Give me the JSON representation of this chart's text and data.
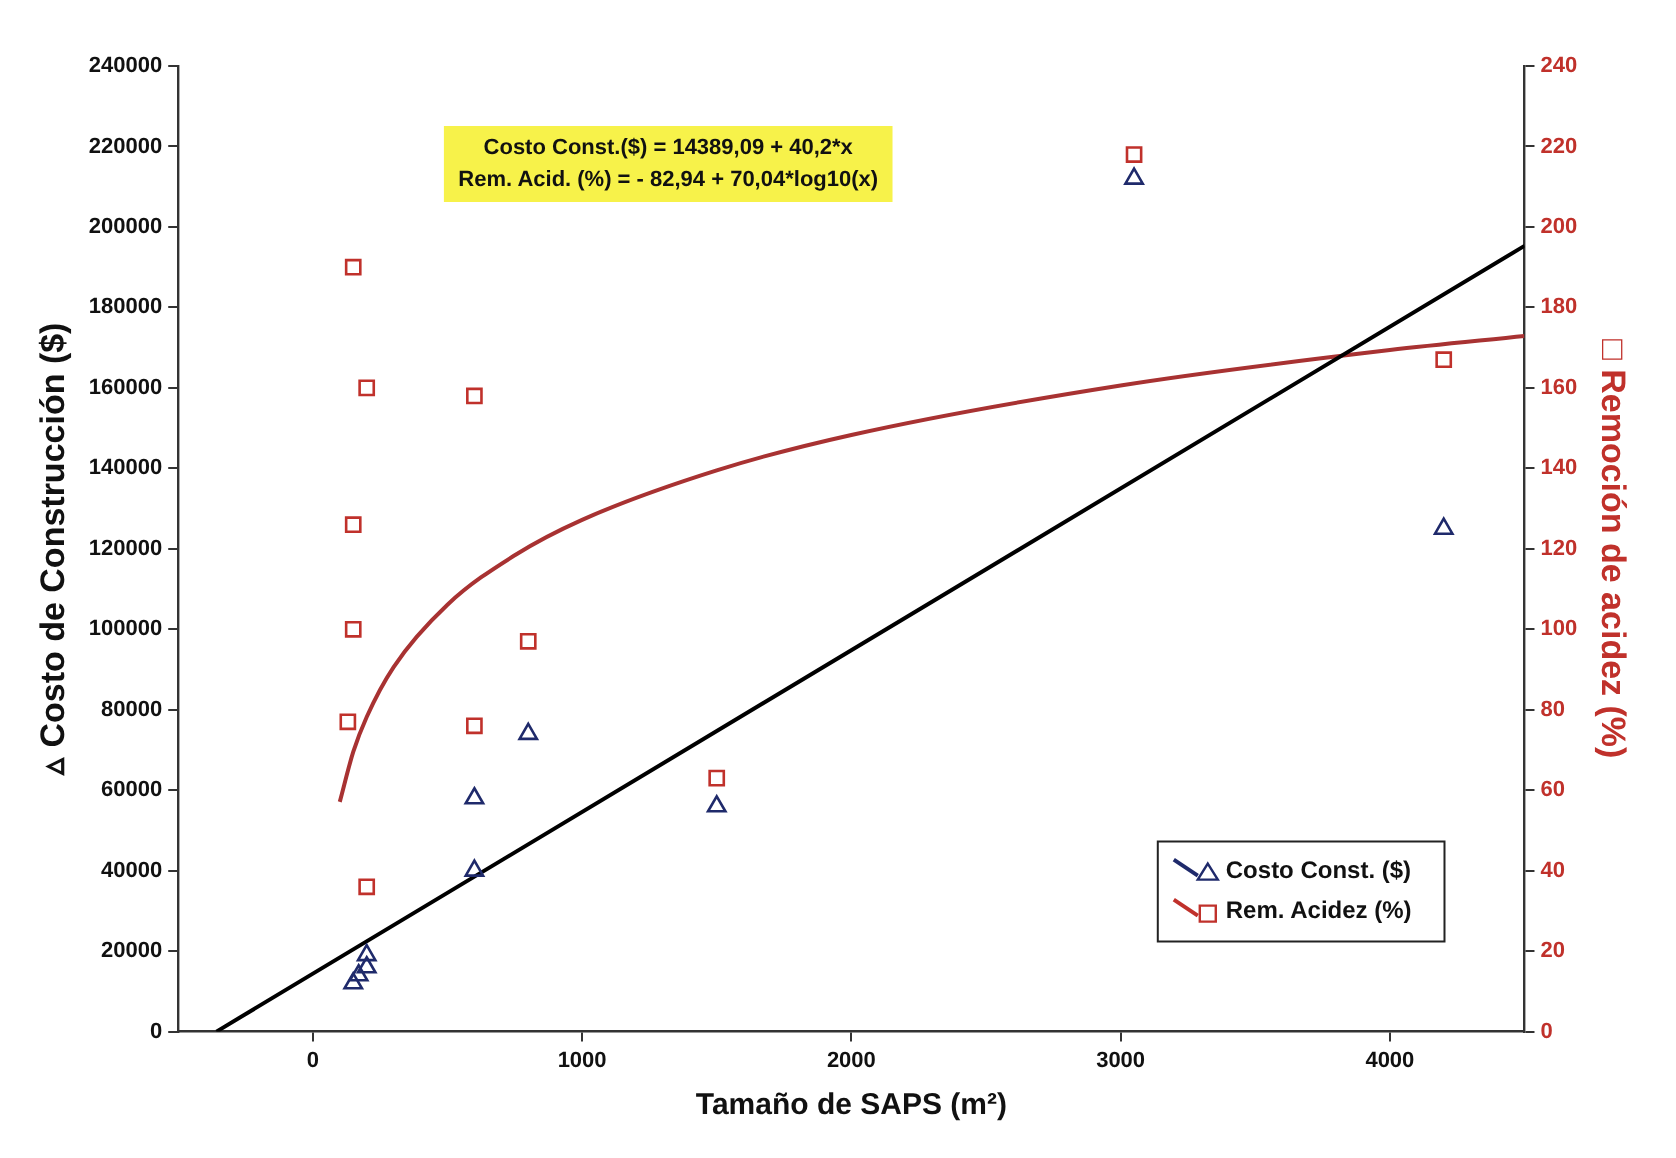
{
  "chart_data": {
    "type": "scatter",
    "xlabel": "Tamaño de SAPS (m²)",
    "ylabel": "▵ Costo de Construcción ($)",
    "y2label": "□ Remoción de acidez (%)",
    "annotations": [
      "Costo Const.($) = 14389,09 + 40,2*x",
      "Rem. Acid. (%) = - 82,94 + 70,04*log10(x)"
    ],
    "xlim": [
      -500,
      4500
    ],
    "xticks": [
      0,
      1000,
      2000,
      3000,
      4000
    ],
    "ylim": [
      0,
      240000
    ],
    "yticks": [
      0,
      20000,
      40000,
      60000,
      80000,
      100000,
      120000,
      140000,
      160000,
      180000,
      200000,
      220000,
      240000
    ],
    "y2lim": [
      0,
      240
    ],
    "y2ticks": [
      0,
      20,
      40,
      60,
      80,
      100,
      120,
      140,
      160,
      180,
      200,
      220,
      240
    ],
    "grid": false,
    "legend": "bottom right",
    "series": [
      {
        "name": "Costo Const. ($)",
        "type": "scatter",
        "marker": "triangle",
        "color": "#1f2a6b",
        "x": [
          150,
          170,
          200,
          200,
          600,
          600,
          800,
          1500,
          3050,
          4200
        ],
        "values": [
          12000,
          14000,
          16000,
          19000,
          40000,
          58000,
          74000,
          56000,
          212000,
          125000
        ]
      },
      {
        "name": "Rem. Acidez (%)",
        "type": "scatter",
        "marker": "square",
        "axis": "y2",
        "color": "#c0312b",
        "x": [
          150,
          200,
          600,
          150,
          150,
          800,
          130,
          600,
          1500,
          200,
          3050,
          4200
        ],
        "values": [
          190,
          160,
          158,
          126,
          100,
          97,
          77,
          76,
          63,
          36,
          218,
          167
        ]
      },
      {
        "type": "line",
        "marker": "none",
        "line_style": "solid",
        "color": "#000000",
        "x": [
          -358,
          4500
        ],
        "values": [
          0,
          195300
        ]
      },
      {
        "type": "line",
        "marker": "none",
        "line_style": "solid",
        "axis": "y2",
        "color": "#a83232",
        "x": [
          100,
          150,
          200,
          300,
          500,
          750,
          1000,
          1500,
          2000,
          3000,
          4000,
          4500
        ],
        "values": [
          57.1,
          69.5,
          78.2,
          90.6,
          106.1,
          118.4,
          127.2,
          139.5,
          148.3,
          160.6,
          169.4,
          172.9
        ]
      }
    ]
  }
}
